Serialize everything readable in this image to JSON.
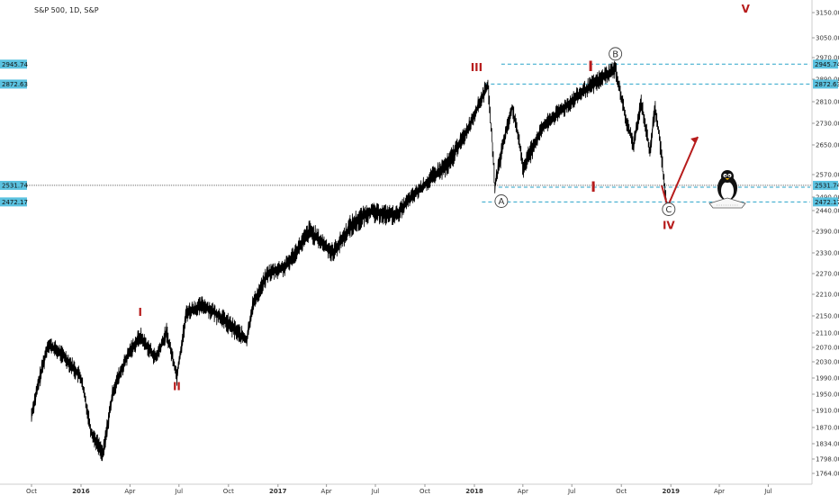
{
  "chart_title": "S&P 500, 1D, S&P",
  "colors": {
    "price": "#000000",
    "level": "#29a3c9",
    "level_tag": "#5bc2e0",
    "wave": "#b71c1c",
    "grid": "#e6e6e6"
  },
  "chart_data": {
    "type": "line",
    "title": "S&P 500, 1D, S&P",
    "xlabel": "",
    "ylabel": "",
    "ylim": [
      1740,
      3175
    ],
    "grid": false,
    "price_axis": {
      "position": "right",
      "tick_labels": [
        "3150.00",
        "3050.00",
        "2970.00",
        "2890.00",
        "2810.00",
        "2730.00",
        "2650.00",
        "2570.00",
        "2490.00",
        "2440.00",
        "2390.00",
        "2330.00",
        "2270.00",
        "2210.00",
        "2150.00",
        "2110.00",
        "2070.00",
        "2030.00",
        "1990.00",
        "1950.00",
        "1910.00",
        "1870.00",
        "1834.00",
        "1798.00",
        "1764.00"
      ],
      "tick_values": [
        3150,
        3050,
        2970,
        2890,
        2810,
        2730,
        2650,
        2570,
        2490,
        2440,
        2390,
        2330,
        2270,
        2210,
        2150,
        2110,
        2070,
        2030,
        1990,
        1950,
        1910,
        1870,
        1834,
        1798,
        1764
      ]
    },
    "time_axis": {
      "labels": [
        "Oct",
        "2016",
        "Apr",
        "Jul",
        "Oct",
        "2017",
        "Apr",
        "Jul",
        "Oct",
        "2018",
        "Apr",
        "Jul",
        "Oct",
        "2019",
        "Apr",
        "Jul"
      ],
      "values": [
        "2015-10",
        "2016-01",
        "2016-04",
        "2016-07",
        "2016-10",
        "2017-01",
        "2017-04",
        "2017-07",
        "2017-10",
        "2018-01",
        "2018-04",
        "2018-07",
        "2018-10",
        "2019-01",
        "2019-04",
        "2019-07"
      ],
      "bold": [
        "2016",
        "2017",
        "2018",
        "2019"
      ]
    },
    "series": [
      {
        "x": [
          "2015-10-01",
          "2015-11-01",
          "2015-12-01",
          "2016-01-01",
          "2016-01-20",
          "2016-02-11",
          "2016-03-01",
          "2016-04-01",
          "2016-04-20",
          "2016-05-19",
          "2016-06-08",
          "2016-06-27",
          "2016-07-15",
          "2016-08-15",
          "2016-09-15",
          "2016-11-04",
          "2016-11-15",
          "2016-12-13",
          "2017-01-15",
          "2017-03-01",
          "2017-04-13",
          "2017-05-15",
          "2017-06-19",
          "2017-08-10",
          "2017-09-01",
          "2017-10-15",
          "2017-11-15",
          "2017-12-15",
          "2018-01-26",
          "2018-02-08",
          "2018-03-12",
          "2018-04-02",
          "2018-05-10",
          "2018-06-12",
          "2018-07-25",
          "2018-09-20",
          "2018-10-11",
          "2018-10-24",
          "2018-11-07",
          "2018-11-23",
          "2018-12-03",
          "2018-12-24"
        ],
        "y": [
          1900,
          2080,
          2045,
          1990,
          1860,
          1810,
          1960,
          2060,
          2100,
          2040,
          2110,
          1995,
          2160,
          2180,
          2150,
          2090,
          2180,
          2270,
          2290,
          2390,
          2330,
          2400,
          2440,
          2430,
          2480,
          2560,
          2600,
          2690,
          2872,
          2532,
          2790,
          2585,
          2720,
          2780,
          2850,
          2930,
          2730,
          2650,
          2810,
          2630,
          2790,
          2480
        ]
      }
    ],
    "price_tags": [
      {
        "label": "2945.74",
        "value": 2945.74
      },
      {
        "label": "2872.63",
        "value": 2872.63
      },
      {
        "label": "2531.74",
        "value": 2531.74
      },
      {
        "label": "2472.17",
        "value": 2472.17
      }
    ],
    "annotations": {
      "waves": [
        {
          "label": "I",
          "x": "2016-04-20",
          "y": 2150
        },
        {
          "label": "II",
          "x": "2016-06-27",
          "y": 1960
        },
        {
          "label": "III",
          "x": "2018-01-05",
          "y": 2920
        },
        {
          "label": "I",
          "x": "2018-08-05",
          "y": 2920
        },
        {
          "label": "I",
          "x": "2018-08-10",
          "y": 2510
        },
        {
          "label": "IV",
          "x": "2018-12-28",
          "y": 2395
        },
        {
          "label": "V",
          "x": "2019-05-20",
          "y": 3150
        }
      ],
      "circled": [
        {
          "label": "A",
          "x": "2018-02-20",
          "y": 2475
        },
        {
          "label": "B",
          "x": "2018-09-20",
          "y": 2985
        },
        {
          "label": "C",
          "x": "2018-12-28",
          "y": 2445
        }
      ]
    }
  }
}
